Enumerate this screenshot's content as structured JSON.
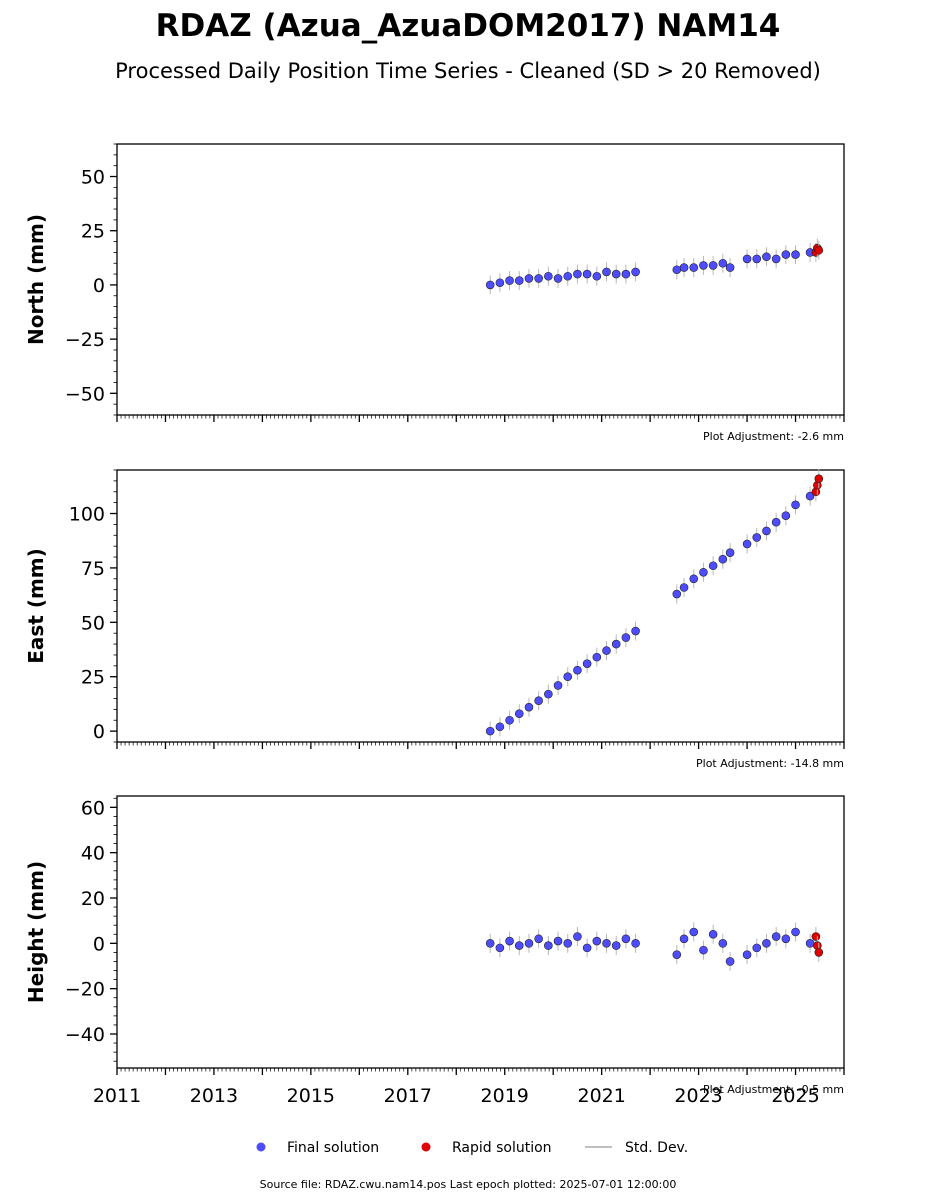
{
  "title": "RDAZ (Azua_AzuaDOM2017) NAM14",
  "subtitle": "Processed Daily Position Time Series - Cleaned (SD > 20 Removed)",
  "source_note": "Source file: RDAZ.cwu.nam14.pos  Last epoch plotted: 2025-07-01 12:00:00",
  "colors": {
    "final": "#4d4dff",
    "rapid": "#e00000",
    "stddev": "#b8b8b8",
    "marker_edge": "#222222"
  },
  "legend": [
    {
      "label": "Final solution",
      "marker": "final"
    },
    {
      "label": "Rapid solution",
      "marker": "rapid"
    },
    {
      "label": "Std. Dev.",
      "marker": "stddev"
    }
  ],
  "chart_data": [
    {
      "type": "scatter",
      "ylabel": "North (mm)",
      "adjustment": "Plot Adjustment: -2.6 mm",
      "xlim": [
        2011,
        2026
      ],
      "ylim": [
        -60,
        65
      ],
      "yticks": [
        -50,
        -25,
        0,
        25,
        50
      ],
      "ytick_labels": [
        "−50",
        "−25",
        "0",
        "25",
        "50"
      ],
      "xticks": [
        2011,
        2013,
        2015,
        2017,
        2019,
        2021,
        2023,
        2025
      ],
      "xtick_labels": [],
      "series": [
        {
          "name": "Final solution",
          "x": [
            2018.7,
            2018.9,
            2019.1,
            2019.3,
            2019.5,
            2019.7,
            2019.9,
            2020.1,
            2020.3,
            2020.5,
            2020.7,
            2020.9,
            2021.1,
            2021.3,
            2021.5,
            2021.7,
            2022.55,
            2022.7,
            2022.9,
            2023.1,
            2023.3,
            2023.5,
            2023.65,
            2024.0,
            2024.2,
            2024.4,
            2024.6,
            2024.8,
            2025.0,
            2025.3
          ],
          "y": [
            0,
            1,
            2,
            2,
            3,
            3,
            4,
            3,
            4,
            5,
            5,
            4,
            6,
            5,
            5,
            6,
            7,
            8,
            8,
            9,
            9,
            10,
            8,
            12,
            12,
            13,
            12,
            14,
            14,
            15
          ]
        },
        {
          "name": "Rapid solution",
          "x": [
            2025.42,
            2025.45,
            2025.48
          ],
          "y": [
            15,
            17,
            16
          ]
        }
      ]
    },
    {
      "type": "scatter",
      "ylabel": "East (mm)",
      "adjustment": "Plot Adjustment: -14.8 mm",
      "xlim": [
        2011,
        2026
      ],
      "ylim": [
        -5,
        120
      ],
      "yticks": [
        0,
        25,
        50,
        75,
        100
      ],
      "ytick_labels": [
        "0",
        "25",
        "50",
        "75",
        "100"
      ],
      "xticks": [
        2011,
        2013,
        2015,
        2017,
        2019,
        2021,
        2023,
        2025
      ],
      "xtick_labels": [],
      "series": [
        {
          "name": "Final solution",
          "x": [
            2018.7,
            2018.9,
            2019.1,
            2019.3,
            2019.5,
            2019.7,
            2019.9,
            2020.1,
            2020.3,
            2020.5,
            2020.7,
            2020.9,
            2021.1,
            2021.3,
            2021.5,
            2021.7,
            2022.55,
            2022.7,
            2022.9,
            2023.1,
            2023.3,
            2023.5,
            2023.65,
            2024.0,
            2024.2,
            2024.4,
            2024.6,
            2024.8,
            2025.0,
            2025.3
          ],
          "y": [
            0,
            2,
            5,
            8,
            11,
            14,
            17,
            21,
            25,
            28,
            31,
            34,
            37,
            40,
            43,
            46,
            63,
            66,
            70,
            73,
            76,
            79,
            82,
            86,
            89,
            92,
            96,
            99,
            104,
            108
          ]
        },
        {
          "name": "Rapid solution",
          "x": [
            2025.42,
            2025.45,
            2025.48
          ],
          "y": [
            110,
            113,
            116
          ]
        }
      ]
    },
    {
      "type": "scatter",
      "ylabel": "Height (mm)",
      "adjustment": "Plot Adjustment: -0.5 mm",
      "xlim": [
        2011,
        2026
      ],
      "ylim": [
        -55,
        65
      ],
      "yticks": [
        -40,
        -20,
        0,
        20,
        40,
        60
      ],
      "ytick_labels": [
        "−40",
        "−20",
        "0",
        "20",
        "40",
        "60"
      ],
      "xticks": [
        2011,
        2013,
        2015,
        2017,
        2019,
        2021,
        2023,
        2025
      ],
      "xtick_labels": [
        "2011",
        "2013",
        "2015",
        "2017",
        "2019",
        "2021",
        "2023",
        "2025"
      ],
      "series": [
        {
          "name": "Final solution",
          "x": [
            2018.7,
            2018.9,
            2019.1,
            2019.3,
            2019.5,
            2019.7,
            2019.9,
            2020.1,
            2020.3,
            2020.5,
            2020.7,
            2020.9,
            2021.1,
            2021.3,
            2021.5,
            2021.7,
            2022.55,
            2022.7,
            2022.9,
            2023.1,
            2023.3,
            2023.5,
            2023.65,
            2024.0,
            2024.2,
            2024.4,
            2024.6,
            2024.8,
            2025.0,
            2025.3
          ],
          "y": [
            0,
            -2,
            1,
            -1,
            0,
            2,
            -1,
            1,
            0,
            3,
            -2,
            1,
            0,
            -1,
            2,
            0,
            -5,
            2,
            5,
            -3,
            4,
            0,
            -8,
            -5,
            -2,
            0,
            3,
            2,
            5,
            0
          ]
        },
        {
          "name": "Rapid solution",
          "x": [
            2025.42,
            2025.45,
            2025.48
          ],
          "y": [
            3,
            -1,
            -4
          ]
        }
      ]
    }
  ]
}
